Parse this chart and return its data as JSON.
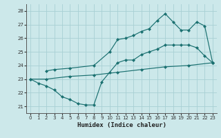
{
  "xlabel": "Humidex (Indice chaleur)",
  "bg_color": "#cce8ea",
  "line_color": "#1a7070",
  "grid_color": "#a8d0d4",
  "xlim": [
    -0.5,
    23.5
  ],
  "ylim": [
    20.5,
    28.5
  ],
  "xticks": [
    0,
    1,
    2,
    3,
    4,
    5,
    6,
    7,
    8,
    9,
    10,
    11,
    12,
    13,
    14,
    15,
    16,
    17,
    18,
    19,
    20,
    21,
    22,
    23
  ],
  "yticks": [
    21,
    22,
    23,
    24,
    25,
    26,
    27,
    28
  ],
  "line1_x": [
    0,
    2,
    5,
    8,
    11,
    14,
    17,
    20,
    23
  ],
  "line1_y": [
    23.0,
    23.0,
    23.2,
    23.3,
    23.5,
    23.7,
    23.9,
    24.0,
    24.2
  ],
  "line2_x": [
    0,
    1,
    2,
    3,
    4,
    5,
    6,
    7,
    8,
    9,
    10,
    11,
    12,
    13,
    14,
    15,
    16,
    17,
    18,
    19,
    20,
    21,
    22,
    23
  ],
  "line2_y": [
    23.0,
    22.7,
    22.5,
    22.2,
    21.7,
    21.5,
    21.2,
    21.1,
    21.1,
    22.8,
    23.5,
    24.2,
    24.4,
    24.4,
    24.8,
    25.0,
    25.2,
    25.5,
    25.5,
    25.5,
    25.5,
    25.3,
    24.7,
    24.2
  ],
  "line3_x": [
    2,
    3,
    5,
    8,
    10,
    11,
    12,
    13,
    14,
    15,
    16,
    17,
    18,
    19,
    20,
    21,
    22,
    23
  ],
  "line3_y": [
    23.6,
    23.7,
    23.8,
    24.0,
    25.0,
    25.9,
    26.0,
    26.2,
    26.5,
    26.7,
    27.3,
    27.8,
    27.2,
    26.6,
    26.6,
    27.2,
    26.9,
    24.2
  ]
}
